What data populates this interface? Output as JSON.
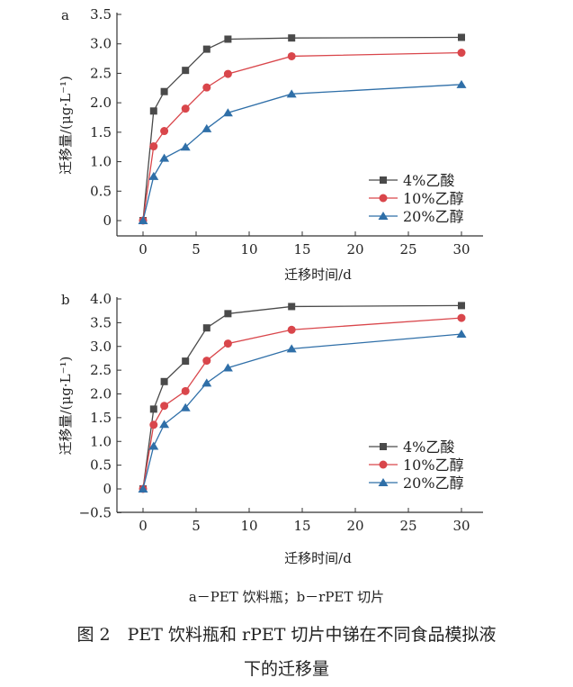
{
  "chart_data": [
    {
      "type": "line",
      "panel_label": "a",
      "xlabel": "迁移时间/d",
      "ylabel": "迁移量/(μg·L⁻¹)",
      "xlim": [
        -2,
        32
      ],
      "ylim": [
        -0.25,
        3.5
      ],
      "xticks": [
        0,
        5,
        10,
        15,
        20,
        25,
        30
      ],
      "yticks": [
        0,
        0.5,
        1.0,
        1.5,
        2.0,
        2.5,
        3.0,
        3.5
      ],
      "ytick_labels": [
        "0",
        "0.5",
        "1.0",
        "1.5",
        "2.0",
        "2.5",
        "3.0",
        "3.5"
      ],
      "legend": "bottom-right",
      "grid": false,
      "x": [
        0,
        1,
        2,
        4,
        6,
        8,
        14,
        30
      ],
      "series": [
        {
          "name": "4%乙酸",
          "marker": "square",
          "color": "#4a4a4a",
          "values": [
            0,
            1.86,
            2.19,
            2.55,
            2.91,
            3.08,
            3.1,
            3.11
          ]
        },
        {
          "name": "10%乙醇",
          "marker": "circle",
          "color": "#d9464b",
          "values": [
            0,
            1.26,
            1.52,
            1.9,
            2.26,
            2.49,
            2.79,
            2.85
          ]
        },
        {
          "name": "20%乙醇",
          "marker": "triangle",
          "color": "#2f6fa8",
          "values": [
            0,
            0.75,
            1.06,
            1.25,
            1.56,
            1.83,
            2.15,
            2.31
          ]
        }
      ]
    },
    {
      "type": "line",
      "panel_label": "b",
      "xlabel": "迁移时间/d",
      "ylabel": "迁移量/(μg·L⁻¹)",
      "xlim": [
        -2,
        32
      ],
      "ylim": [
        -0.5,
        4.0
      ],
      "xticks": [
        0,
        5,
        10,
        15,
        20,
        25,
        30
      ],
      "yticks": [
        -0.5,
        0,
        0.5,
        1.0,
        1.5,
        2.0,
        2.5,
        3.0,
        3.5,
        4.0
      ],
      "ytick_labels": [
        "−0.5",
        "0",
        "0.5",
        "1.0",
        "1.5",
        "2.0",
        "2.5",
        "3.0",
        "3.5",
        "4.0"
      ],
      "legend": "bottom-right",
      "grid": false,
      "x": [
        0,
        1,
        2,
        4,
        6,
        8,
        14,
        30
      ],
      "series": [
        {
          "name": "4%乙酸",
          "marker": "square",
          "color": "#4a4a4a",
          "values": [
            0,
            1.68,
            2.26,
            2.69,
            3.39,
            3.69,
            3.84,
            3.86
          ]
        },
        {
          "name": "10%乙醇",
          "marker": "circle",
          "color": "#d9464b",
          "values": [
            0,
            1.35,
            1.75,
            2.06,
            2.7,
            3.06,
            3.35,
            3.6
          ]
        },
        {
          "name": "20%乙醇",
          "marker": "triangle",
          "color": "#2f6fa8",
          "values": [
            0,
            0.9,
            1.36,
            1.71,
            2.23,
            2.55,
            2.95,
            3.26
          ]
        }
      ]
    }
  ],
  "caption": {
    "subcaption": "a－PET 饮料瓶；b－rPET 切片",
    "figure_line1": "图 2　PET 饮料瓶和 rPET 切片中锑在不同食品模拟液",
    "figure_line2": "下的迁移量"
  }
}
